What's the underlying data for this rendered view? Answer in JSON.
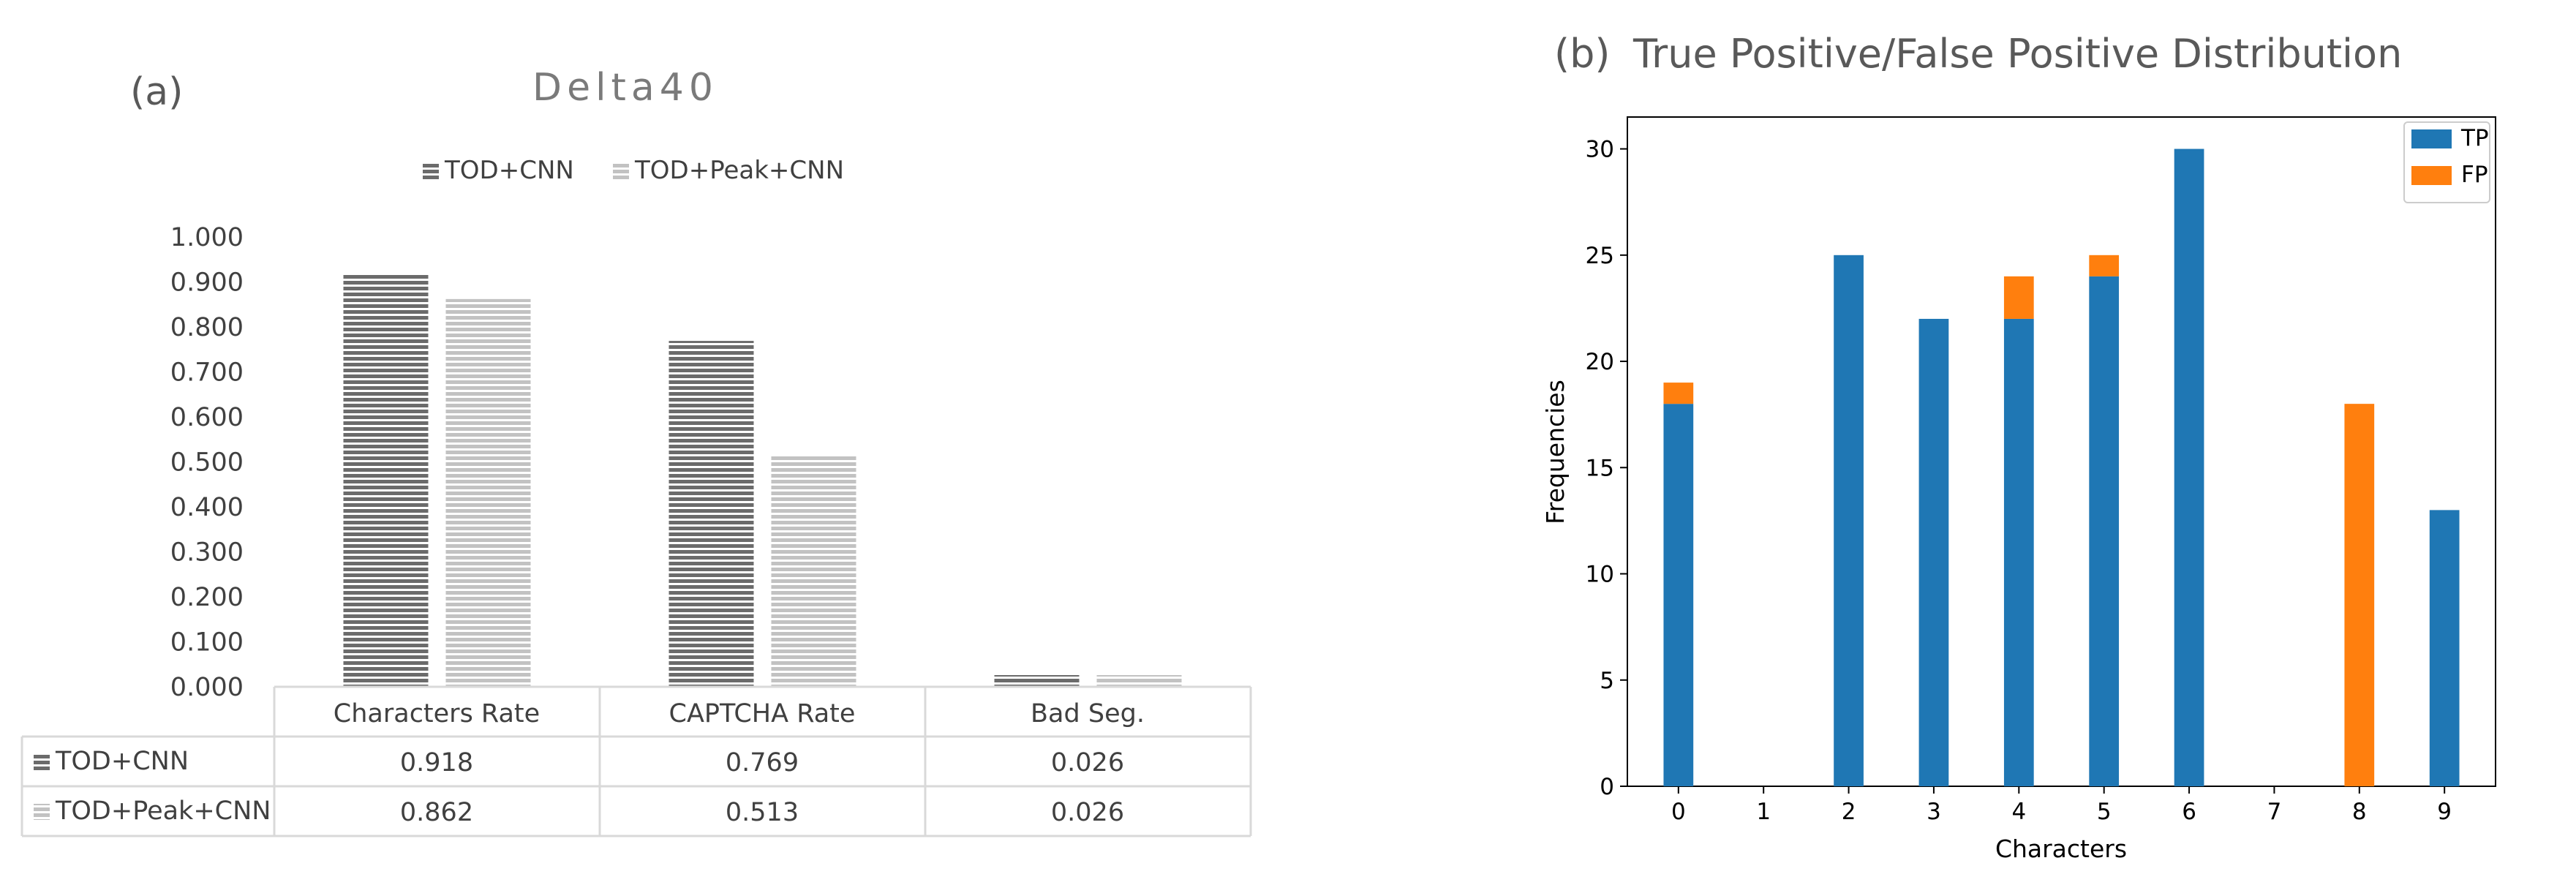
{
  "chart_data": [
    {
      "panel_label": "(a)",
      "type": "bar",
      "title": "Delta40",
      "categories": [
        "Characters Rate",
        "CAPTCHA Rate",
        "Bad Seg."
      ],
      "series": [
        {
          "name": "TOD+CNN",
          "values": [
            0.918,
            0.769,
            0.026
          ],
          "color": "#6b6b6b"
        },
        {
          "name": "TOD+Peak+CNN",
          "values": [
            0.862,
            0.513,
            0.026
          ],
          "color": "#c2c2c2"
        }
      ],
      "table_values": [
        [
          "0.918",
          "0.769",
          "0.026"
        ],
        [
          "0.862",
          "0.513",
          "0.026"
        ]
      ],
      "ylim": [
        0,
        1
      ],
      "yticks": [
        "0.000",
        "0.100",
        "0.200",
        "0.300",
        "0.400",
        "0.500",
        "0.600",
        "0.700",
        "0.800",
        "0.900",
        "1.000"
      ],
      "legend_position": "top-center",
      "data_table": true,
      "grid": false
    },
    {
      "panel_label": "(b)",
      "type": "bar",
      "title": "True Positive/False Positive Distribution",
      "xlabel": "Characters",
      "ylabel": "Frequencies",
      "categories": [
        "0",
        "1",
        "2",
        "3",
        "4",
        "5",
        "6",
        "7",
        "8",
        "9"
      ],
      "stacked": true,
      "series": [
        {
          "name": "TP",
          "values": [
            18,
            0,
            25,
            22,
            22,
            24,
            30,
            0,
            0,
            13
          ],
          "color": "#1f77b4"
        },
        {
          "name": "FP",
          "values": [
            1,
            0,
            0,
            0,
            2,
            1,
            0,
            0,
            18,
            0
          ],
          "color": "#ff7f0e"
        }
      ],
      "ylim": [
        0,
        31.5
      ],
      "yticks": [
        "0",
        "5",
        "10",
        "15",
        "20",
        "25",
        "30"
      ],
      "legend_position": "top-right",
      "grid": false
    }
  ]
}
